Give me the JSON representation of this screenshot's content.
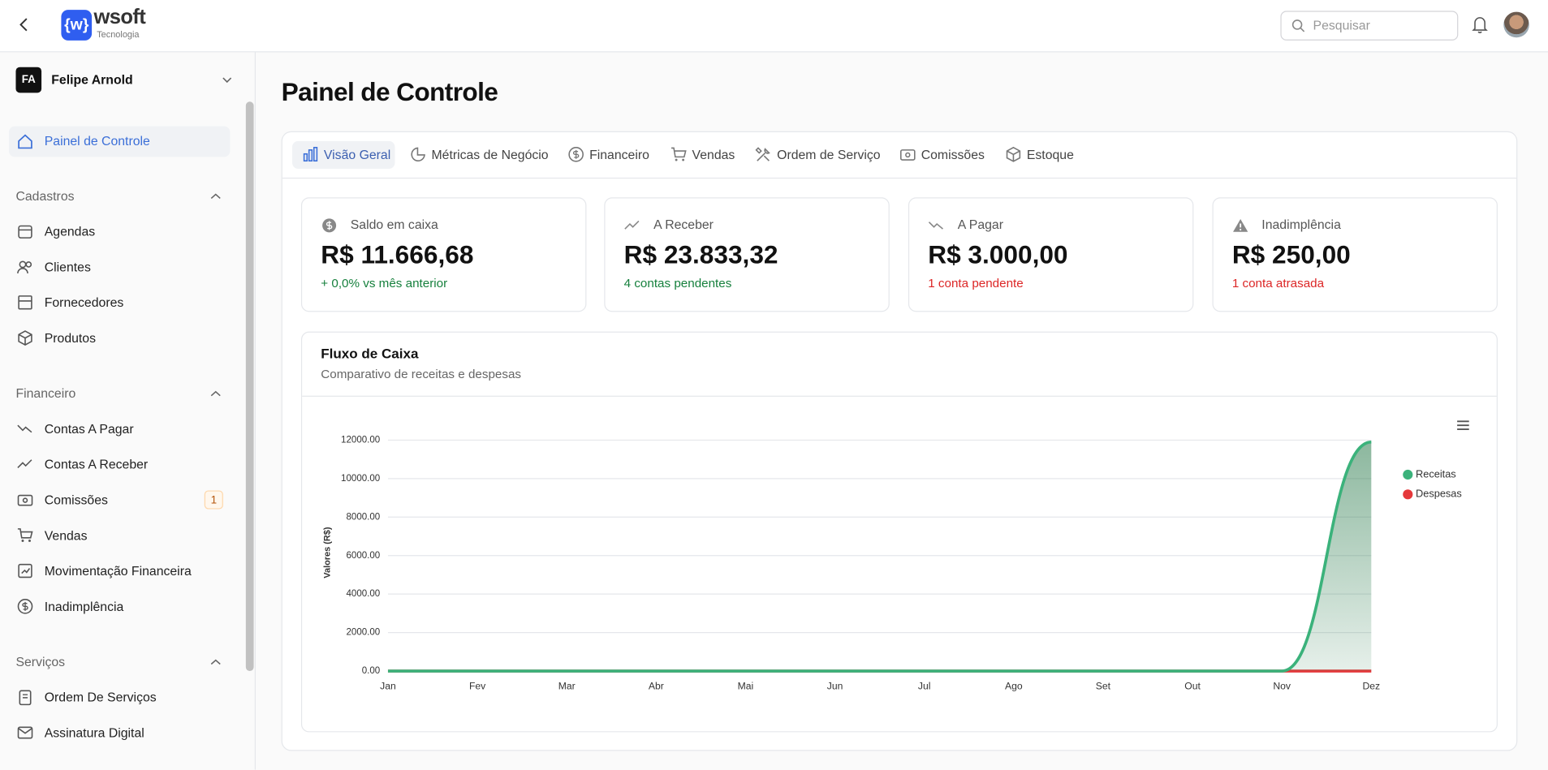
{
  "header": {
    "logo": "wsoft",
    "logo_sub": "Tecnologia",
    "search_placeholder": "Pesquisar"
  },
  "user": {
    "initials": "FA",
    "name": "Felipe Arnold"
  },
  "nav": {
    "home": "Painel de Controle",
    "sections": [
      {
        "title": "Cadastros",
        "items": [
          {
            "label": "Agendas"
          },
          {
            "label": "Clientes"
          },
          {
            "label": "Fornecedores"
          },
          {
            "label": "Produtos"
          }
        ]
      },
      {
        "title": "Financeiro",
        "items": [
          {
            "label": "Contas A Pagar"
          },
          {
            "label": "Contas A Receber"
          },
          {
            "label": "Comissões",
            "badge": "1"
          },
          {
            "label": "Vendas"
          },
          {
            "label": "Movimentação Financeira"
          },
          {
            "label": "Inadimplência"
          }
        ]
      },
      {
        "title": "Serviços",
        "items": [
          {
            "label": "Ordem De Serviços"
          },
          {
            "label": "Assinatura Digital"
          }
        ]
      }
    ]
  },
  "page_title": "Painel de Controle",
  "tabs": [
    "Visão Geral",
    "Métricas de Negócio",
    "Financeiro",
    "Vendas",
    "Ordem de Serviço",
    "Comissões",
    "Estoque"
  ],
  "cards": [
    {
      "label": "Saldo em caixa",
      "value": "R$ 11.666,68",
      "note": "+ 0,0% vs mês anterior"
    },
    {
      "label": "A Receber",
      "value": "R$ 23.833,32",
      "note": "4 contas pendentes"
    },
    {
      "label": "A Pagar",
      "value": "R$ 3.000,00",
      "note": "1 conta pendente"
    },
    {
      "label": "Inadimplência",
      "value": "R$ 250,00",
      "note": "1 conta atrasada"
    }
  ],
  "chart_data": {
    "type": "area",
    "title": "Fluxo de Caixa",
    "subtitle": "Comparativo de receitas e despesas",
    "ylabel": "Valores (R$)",
    "categories": [
      "Jan",
      "Fev",
      "Mar",
      "Abr",
      "Mai",
      "Jun",
      "Jul",
      "Ago",
      "Set",
      "Out",
      "Nov",
      "Dez"
    ],
    "series": [
      {
        "name": "Receitas",
        "color": "#3bb27b",
        "values": [
          0,
          0,
          0,
          0,
          0,
          0,
          0,
          0,
          0,
          0,
          0,
          11900
        ]
      },
      {
        "name": "Despesas",
        "color": "#e5383b",
        "values": [
          0,
          0,
          0,
          0,
          0,
          0,
          0,
          0,
          0,
          0,
          0,
          0
        ]
      }
    ],
    "ylim": [
      0,
      12000
    ],
    "yticks": [
      {
        "value": 0,
        "label": "0.00"
      },
      {
        "value": 2000,
        "label": "2000.00"
      },
      {
        "value": 4000,
        "label": "4000.00"
      },
      {
        "value": 6000,
        "label": "6000.00"
      },
      {
        "value": 8000,
        "label": "8000.00"
      },
      {
        "value": 10000,
        "label": "10000.00"
      },
      {
        "value": 12000,
        "label": "12000.00"
      }
    ],
    "grid": true,
    "legend": "right"
  }
}
